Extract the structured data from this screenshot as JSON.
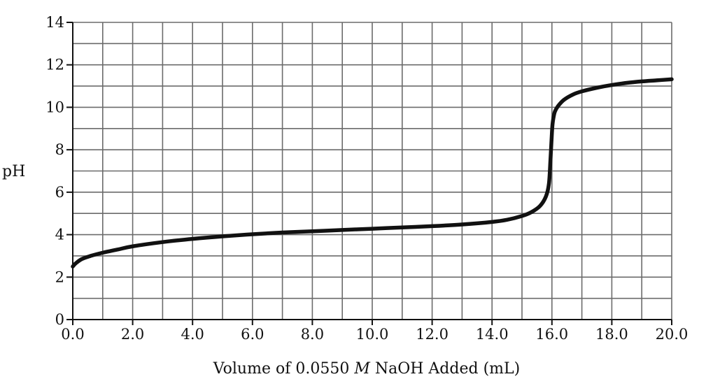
{
  "chart_data": {
    "type": "line",
    "title": "",
    "xlabel_parts": [
      "Volume of 0.0550 ",
      "M",
      " NaOH Added (mL)"
    ],
    "ylabel": "pH",
    "xlim": [
      0,
      20
    ],
    "ylim": [
      0,
      14
    ],
    "x_ticks": [
      "0.0",
      "2.0",
      "4.0",
      "6.0",
      "8.0",
      "10.0",
      "12.0",
      "14.0",
      "16.0",
      "18.0",
      "20.0"
    ],
    "y_ticks": [
      "0",
      "2",
      "4",
      "6",
      "8",
      "10",
      "12",
      "14"
    ],
    "grid": true,
    "series": [
      {
        "color": "#111111",
        "x": [
          0.0,
          0.1,
          0.3,
          0.6,
          1.0,
          1.5,
          2.0,
          3.0,
          4.0,
          5.0,
          6.0,
          7.0,
          8.0,
          9.0,
          10.0,
          11.0,
          12.0,
          13.0,
          14.0,
          14.5,
          15.0,
          15.3,
          15.6,
          15.8,
          15.9,
          15.95,
          16.0,
          16.02,
          16.05,
          16.1,
          16.2,
          16.4,
          16.7,
          17.0,
          17.5,
          18.0,
          18.5,
          19.0,
          19.5,
          20.0
        ],
        "y": [
          2.5,
          2.65,
          2.85,
          3.0,
          3.15,
          3.3,
          3.45,
          3.65,
          3.8,
          3.92,
          4.02,
          4.1,
          4.16,
          4.22,
          4.28,
          4.34,
          4.4,
          4.48,
          4.6,
          4.7,
          4.88,
          5.05,
          5.35,
          5.8,
          6.4,
          7.5,
          8.8,
          9.2,
          9.5,
          9.8,
          10.05,
          10.35,
          10.6,
          10.75,
          10.92,
          11.05,
          11.15,
          11.22,
          11.27,
          11.32
        ]
      }
    ]
  }
}
